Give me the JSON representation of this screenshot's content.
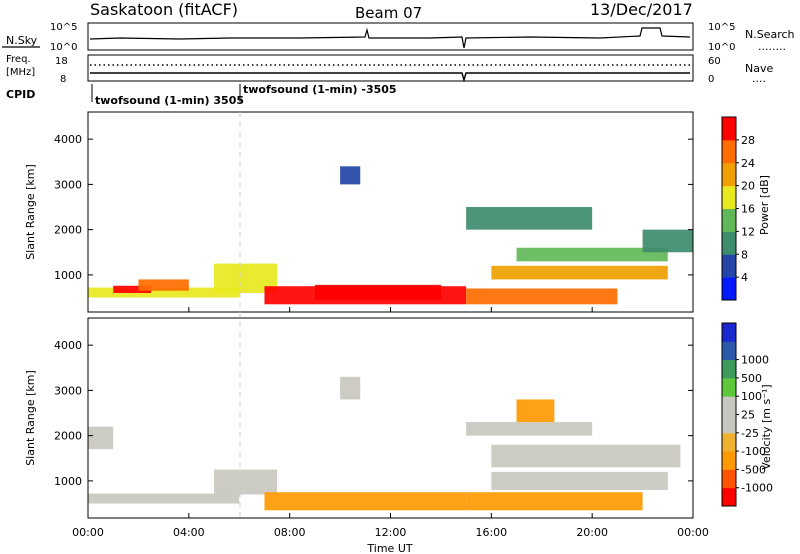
{
  "header": {
    "station": "Saskatoon (fitACF)",
    "beam": "Beam 07",
    "date": "13/Dec/2017"
  },
  "noise_panel": {
    "left_label": "N.Sky",
    "right_label": "N.Search",
    "right_legend": "........",
    "left_ticks": [
      "10^5",
      "10^0"
    ],
    "right_ticks": [
      "10^5",
      "10^0"
    ]
  },
  "freq_panel": {
    "left_label_1": "Freq.",
    "left_label_2": "[MHz]",
    "right_label": "Nave",
    "right_legend": "....",
    "left_ticks": [
      "18",
      "8"
    ],
    "right_ticks": [
      "60",
      "0"
    ]
  },
  "cpid": {
    "label": "CPID",
    "segments": [
      {
        "text": "twofsound (1-min) 3505",
        "start_hour": 0
      },
      {
        "text": "twofsound (1-min) -3505",
        "start_hour": 6
      }
    ]
  },
  "colors": {
    "power": [
      "#0019ff",
      "#2346a8",
      "#3e8c6c",
      "#62b858",
      "#e8e81e",
      "#f0a000",
      "#ff6c00",
      "#ff0000"
    ],
    "velocity": [
      "#ff0000",
      "#ff5500",
      "#ff9900",
      "#f0b030",
      "#c8c8c0",
      "#c8c8c0",
      "#5ec83c",
      "#3c9a5a",
      "#2c5aa8",
      "#1a28d0"
    ],
    "gray_ground_scatter": "#c8c8c0"
  },
  "chart_data": [
    {
      "type": "heatmap",
      "panel": "power",
      "ylabel": "Slant Range [km]",
      "ylim": [
        180,
        4600
      ],
      "xlim": [
        0,
        24
      ],
      "yticks": [
        1000,
        2000,
        3000,
        4000
      ],
      "colorbar": {
        "label": "Power [dB]",
        "ticks": [
          "4",
          "8",
          "12",
          "16",
          "20",
          "24",
          "28"
        ]
      },
      "regions": [
        {
          "x": [
            0.0,
            6.0
          ],
          "y": [
            500,
            720
          ],
          "value": 18
        },
        {
          "x": [
            1.0,
            2.5
          ],
          "y": [
            600,
            760
          ],
          "value": 30
        },
        {
          "x": [
            2.0,
            4.0
          ],
          "y": [
            650,
            900
          ],
          "value": 24
        },
        {
          "x": [
            5.0,
            7.5
          ],
          "y": [
            600,
            1250
          ],
          "value": 16
        },
        {
          "x": [
            7.0,
            15.0
          ],
          "y": [
            350,
            750
          ],
          "value": 30
        },
        {
          "x": [
            9.0,
            14.0
          ],
          "y": [
            450,
            780
          ],
          "value": 28
        },
        {
          "x": [
            15.0,
            21.0
          ],
          "y": [
            350,
            700
          ],
          "value": 26
        },
        {
          "x": [
            16.0,
            23.0
          ],
          "y": [
            900,
            1200
          ],
          "value": 22
        },
        {
          "x": [
            17.0,
            23.0
          ],
          "y": [
            1300,
            1600
          ],
          "value": 14
        },
        {
          "x": [
            15.0,
            20.0
          ],
          "y": [
            2000,
            2500
          ],
          "value": 10
        },
        {
          "x": [
            22.0,
            24.0
          ],
          "y": [
            1500,
            2000
          ],
          "value": 8
        },
        {
          "x": [
            10.0,
            10.8
          ],
          "y": [
            3000,
            3400
          ],
          "value": 6
        }
      ]
    },
    {
      "type": "heatmap",
      "panel": "velocity",
      "xlabel": "Time UT",
      "ylabel": "Slant Range [km]",
      "ylim": [
        180,
        4600
      ],
      "xlim": [
        0,
        24
      ],
      "yticks": [
        1000,
        2000,
        3000,
        4000
      ],
      "xticks": [
        "00:00",
        "04:00",
        "08:00",
        "12:00",
        "16:00",
        "20:00",
        "00:00"
      ],
      "colorbar": {
        "label": "Velocity [m s⁻¹]",
        "ticks": [
          "-1000",
          "-500",
          "-100",
          "-25",
          "25",
          "100",
          "500",
          "1000"
        ]
      },
      "regions": [
        {
          "x": [
            0.0,
            6.0
          ],
          "y": [
            500,
            720
          ],
          "value": 0
        },
        {
          "x": [
            5.0,
            7.5
          ],
          "y": [
            700,
            1250
          ],
          "value": 0
        },
        {
          "x": [
            7.0,
            15.0
          ],
          "y": [
            350,
            750
          ],
          "value": -150
        },
        {
          "x": [
            15.0,
            22.0
          ],
          "y": [
            350,
            750
          ],
          "value": -150
        },
        {
          "x": [
            16.0,
            23.0
          ],
          "y": [
            800,
            1200
          ],
          "value": 0
        },
        {
          "x": [
            16.0,
            23.5
          ],
          "y": [
            1300,
            1800
          ],
          "value": 0
        },
        {
          "x": [
            15.0,
            20.0
          ],
          "y": [
            2000,
            2300
          ],
          "value": 0
        },
        {
          "x": [
            17.0,
            18.5
          ],
          "y": [
            2300,
            2800
          ],
          "value": -300
        },
        {
          "x": [
            0.0,
            1.0
          ],
          "y": [
            1700,
            2200
          ],
          "value": 0
        },
        {
          "x": [
            10.0,
            10.8
          ],
          "y": [
            2800,
            3300
          ],
          "value": 0
        }
      ]
    }
  ]
}
